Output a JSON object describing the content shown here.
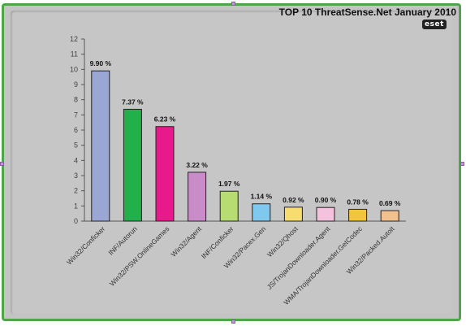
{
  "colors": {
    "frame_border": "#4fa54a",
    "background": "#c4c4c4"
  },
  "chart_data": {
    "type": "bar",
    "title": "TOP 10 ThreatSense.Net January 2010",
    "brand": "eset",
    "xlabel": "",
    "ylabel": "",
    "ylim": [
      0,
      12
    ],
    "yticks": [
      0,
      1,
      2,
      3,
      4,
      5,
      6,
      7,
      8,
      9,
      10,
      11,
      12
    ],
    "grid": false,
    "legend": "none",
    "categories": [
      "Win32/Conficker",
      "INF/Autorun",
      "Win32/PSW.OnlineGames",
      "Win32/Agent",
      "INF/Conficker",
      "Win32/Pacex.Gen",
      "Win32/Qhost",
      "JS/TrojanDownloader.Agent",
      "WMA/TrojanDownloader.GetCodec",
      "Win32/Packed.Autoit"
    ],
    "values": [
      9.9,
      7.37,
      6.23,
      3.22,
      1.97,
      1.14,
      0.92,
      0.9,
      0.78,
      0.69
    ],
    "data_labels": [
      "9.90 %",
      "7.37 %",
      "6.23 %",
      "3.22 %",
      "1.97 %",
      "1.14 %",
      "0.92 %",
      "0.90 %",
      "0.78 %",
      "0.69 %"
    ],
    "bar_colors": [
      "#9aa7d4",
      "#22b04b",
      "#e8198a",
      "#c98cc8",
      "#b6dc72",
      "#7fc9ee",
      "#f7dc6f",
      "#f4c2dc",
      "#f4c53c",
      "#f3c18e"
    ]
  }
}
